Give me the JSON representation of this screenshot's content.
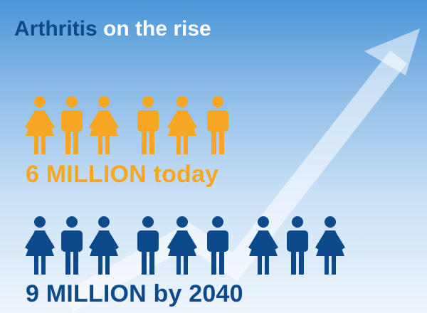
{
  "title": {
    "word1": "Arthritis",
    "word2": "on the rise"
  },
  "groups": [
    {
      "id": "today",
      "caption": "6 MILLION today",
      "color": "#f6a623",
      "figures": [
        "female",
        "male",
        "female",
        "male",
        "female",
        "male"
      ]
    },
    {
      "id": "2040",
      "caption": "9 MILLION by 2040",
      "color": "#0d4a8c",
      "figures": [
        "female",
        "male",
        "female",
        "male",
        "female",
        "male",
        "female",
        "male",
        "female"
      ]
    }
  ],
  "colors": {
    "title_accent": "#0d4a8c",
    "title_text": "#ffffff",
    "arrow": "#ffffff"
  },
  "icons": [
    "rising-trend-arrow-icon",
    "female-person-icon",
    "male-person-icon"
  ]
}
